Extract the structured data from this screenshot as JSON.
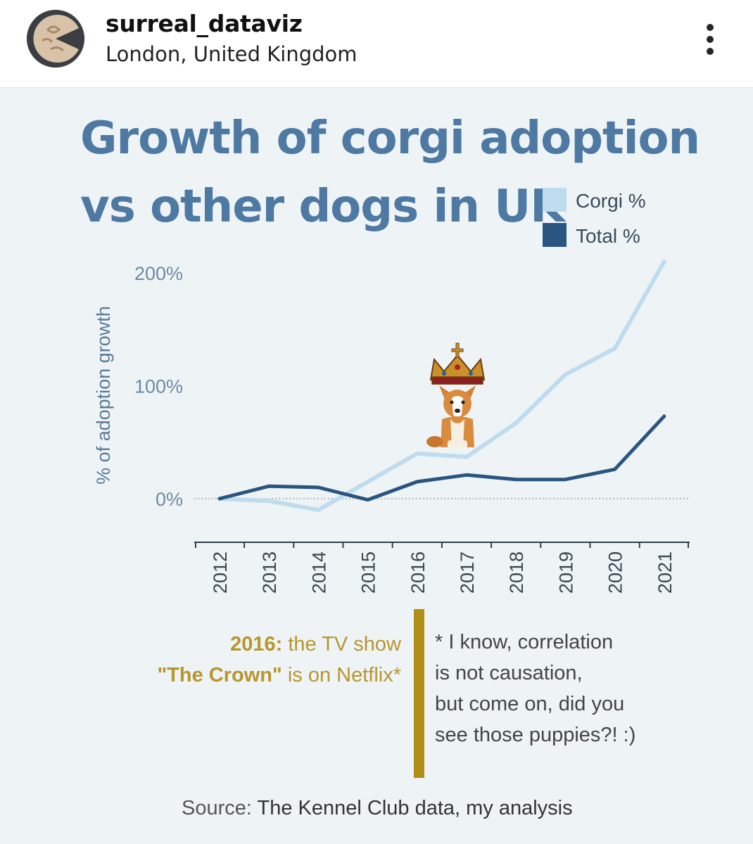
{
  "header": {
    "username": "surreal_dataviz",
    "location": "London, United Kingdom",
    "more_icon": "more-vertical-icon"
  },
  "colors": {
    "title": "#4e79a3",
    "corgi": "#bfdcef",
    "total": "#2a5580",
    "note_accent": "#b08d15",
    "background": "#eef4f6"
  },
  "chart_data": {
    "type": "line",
    "title_line1": "Growth of corgi adoption",
    "title_line2": "vs other dogs in UK",
    "ylabel": "% of adoption growth",
    "xlabel": "",
    "ylim": [
      -40,
      210
    ],
    "yticks": [
      {
        "value": 0,
        "label": "0%"
      },
      {
        "value": 100,
        "label": "100%"
      },
      {
        "value": 200,
        "label": "200%"
      }
    ],
    "categories": [
      "2012",
      "2013",
      "2014",
      "2015",
      "2016",
      "2017",
      "2018",
      "2019",
      "2020",
      "2021"
    ],
    "series": [
      {
        "name": "Corgi %",
        "values": [
          0,
          -2,
          -10,
          15,
          40,
          37,
          67,
          110,
          133,
          210
        ]
      },
      {
        "name": "Total %",
        "values": [
          0,
          11,
          10,
          -1,
          15,
          21,
          17,
          17,
          26,
          73
        ]
      }
    ],
    "legend": [
      "Corgi %",
      "Total %"
    ],
    "legend_position": "top-right",
    "annotation_icon": "crowned-corgi-icon"
  },
  "notes": {
    "left_bold_1": "2016:",
    "left_rest_1": " the TV show",
    "left_bold_2": "\"The Crown\"",
    "left_rest_2": " is on Netflix*",
    "right_lines": [
      "* I know, correlation",
      "is not causation,",
      "but come on, did you",
      "see those puppies?! :)"
    ]
  },
  "source": {
    "prefix": "Source:",
    "text": " The Kennel Club data, my analysis"
  }
}
